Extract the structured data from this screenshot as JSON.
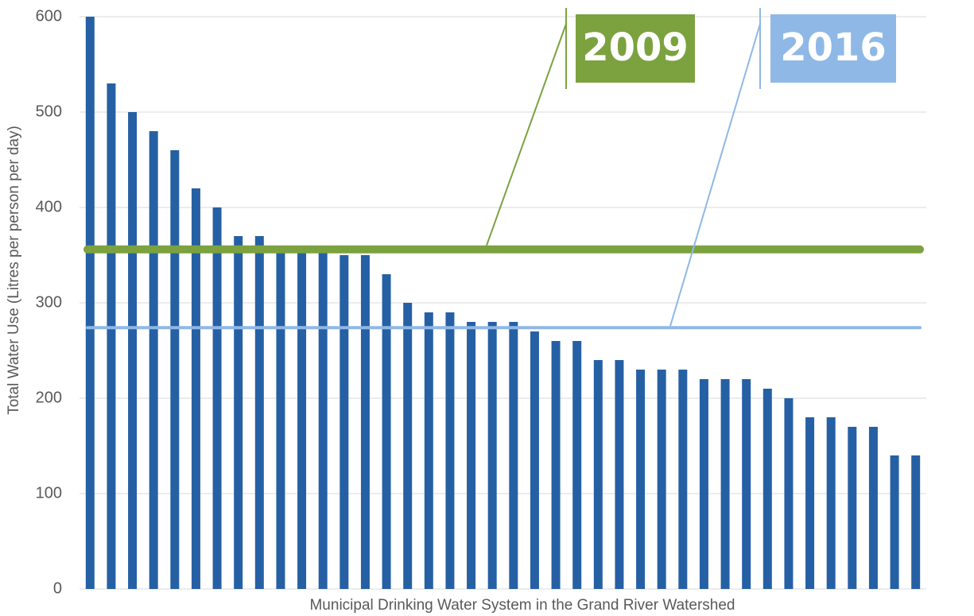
{
  "chart_data": {
    "type": "bar",
    "x_label": "Municipal Drinking Water System in the Grand River Watershed",
    "y_label": "Total Water Use (Litres per person per day)",
    "categories": [
      null,
      null,
      null,
      null,
      null,
      null,
      null,
      null,
      null,
      null,
      null,
      null,
      null,
      null,
      null,
      null,
      null,
      null,
      null,
      null,
      null,
      null,
      null,
      null,
      null,
      null,
      null,
      null,
      null,
      null,
      null,
      null,
      null,
      null,
      null,
      null,
      null,
      null,
      null,
      null
    ],
    "values": [
      600,
      530,
      500,
      480,
      460,
      420,
      400,
      370,
      370,
      360,
      360,
      360,
      350,
      350,
      330,
      300,
      290,
      290,
      280,
      280,
      280,
      270,
      260,
      260,
      240,
      240,
      230,
      230,
      230,
      220,
      220,
      220,
      210,
      200,
      180,
      180,
      170,
      170,
      140,
      140
    ],
    "color": "#2660a4",
    "ylim": [
      0,
      600
    ],
    "yticks": [
      0,
      100,
      200,
      300,
      400,
      500,
      600
    ],
    "grid": true,
    "reference_lines": [
      {
        "label": "2009",
        "value": 356,
        "color": "#7ba23f"
      },
      {
        "label": "2016",
        "value": 274,
        "color": "#8fb8e6"
      }
    ]
  }
}
